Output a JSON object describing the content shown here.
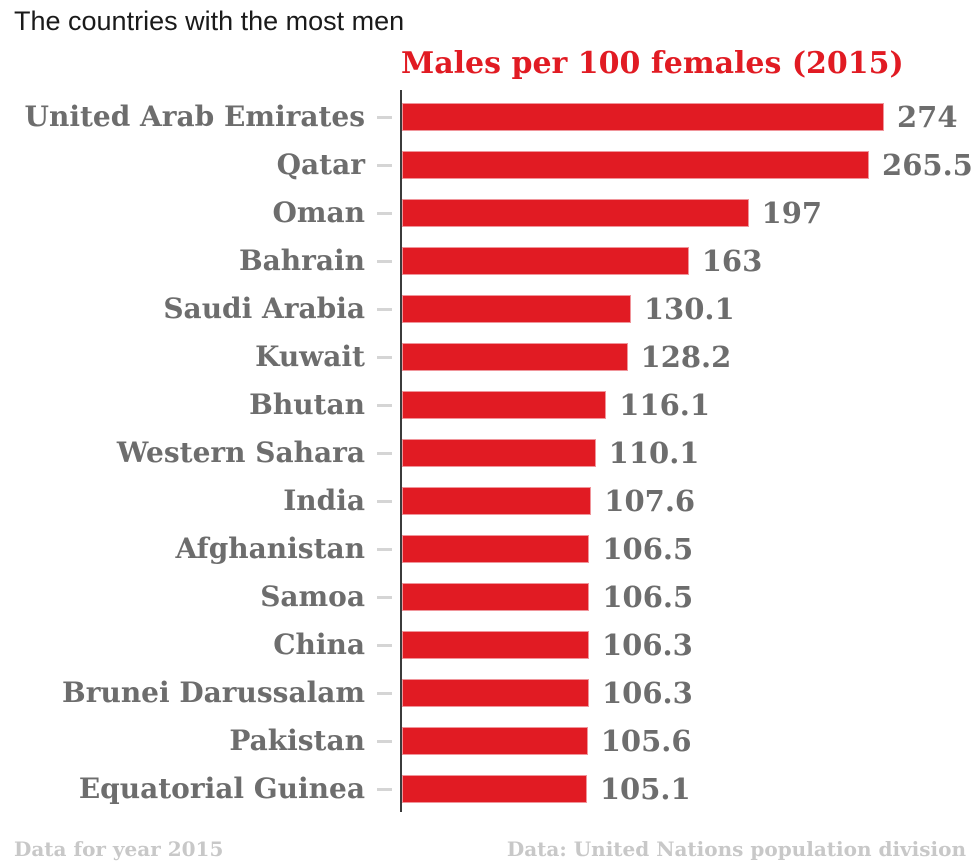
{
  "page": {
    "title": "The countries with the most men"
  },
  "chart": {
    "subtitle": "Males per 100 females (2015)"
  },
  "footer": {
    "left": "Data for year 2015",
    "right": "Data: United Nations population division"
  },
  "colors": {
    "bar_fill": "#e11b23",
    "bar_edge": "#f0959b",
    "subtitle_red": "#e11b23",
    "label_gray": "#6d6d6d",
    "axis_dark": "#3b3b3b",
    "tick_gray": "#d5d5d5",
    "footer_gray": "#c8c8c8",
    "title_black": "#1a1a1a"
  },
  "chart_data": {
    "type": "bar",
    "orientation": "horizontal",
    "title": "Males per 100 females (2015)",
    "xlabel": "",
    "ylabel": "",
    "xlim": [
      0,
      274
    ],
    "grid": false,
    "legend": false,
    "categories": [
      "United Arab Emirates",
      "Qatar",
      "Oman",
      "Bahrain",
      "Saudi Arabia",
      "Kuwait",
      "Bhutan",
      "Western Sahara",
      "India",
      "Afghanistan",
      "Samoa",
      "China",
      "Brunei Darussalam",
      "Pakistan",
      "Equatorial Guinea"
    ],
    "values": [
      274,
      265.5,
      197,
      163,
      130.1,
      128.2,
      116.1,
      110.1,
      107.6,
      106.5,
      106.5,
      106.3,
      106.3,
      105.6,
      105.1
    ]
  }
}
